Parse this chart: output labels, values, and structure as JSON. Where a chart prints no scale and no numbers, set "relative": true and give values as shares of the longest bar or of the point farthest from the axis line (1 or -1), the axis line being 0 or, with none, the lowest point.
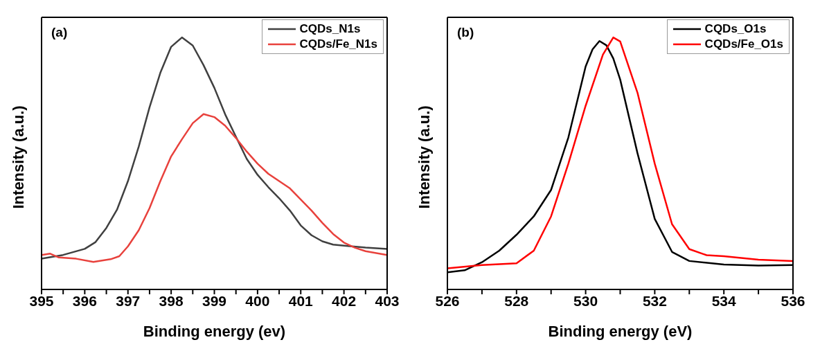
{
  "chart_data": [
    {
      "type": "line",
      "relative": true,
      "annotations": [
        "(a)"
      ],
      "xlabel": "Binding energy (ev)",
      "ylabel": "Intensity (a.u.)",
      "xlim": [
        395,
        403
      ],
      "xticks": [
        395,
        {
          "value": 395.5,
          "label": null
        },
        396,
        {
          "value": 396.5,
          "label": null
        },
        397,
        {
          "value": 397.5,
          "label": null
        },
        398,
        {
          "value": 398.5,
          "label": null
        },
        399,
        {
          "value": 399.5,
          "label": null
        },
        400,
        {
          "value": 400.5,
          "label": null
        },
        401,
        {
          "value": 401.5,
          "label": null
        },
        402,
        {
          "value": 402.5,
          "label": null
        },
        403
      ],
      "legend": "top right",
      "marker": "none",
      "line_style": "solid",
      "series": [
        {
          "name": "CQDs_N1s",
          "color": "#404040",
          "x": [
            395,
            395.5,
            396,
            396.25,
            396.5,
            396.75,
            397,
            397.25,
            397.5,
            397.75,
            398,
            398.25,
            398.5,
            398.75,
            399,
            399.25,
            399.5,
            399.75,
            400,
            400.25,
            400.5,
            400.75,
            401,
            401.25,
            401.5,
            401.75,
            402,
            402.5,
            403
          ],
          "values": [
            0.122,
            0.137,
            0.161,
            0.188,
            0.244,
            0.318,
            0.43,
            0.567,
            0.723,
            0.86,
            0.963,
            1,
            0.968,
            0.89,
            0.8,
            0.695,
            0.606,
            0.518,
            0.455,
            0.406,
            0.362,
            0.313,
            0.254,
            0.215,
            0.191,
            0.178,
            0.174,
            0.166,
            0.161
          ]
        },
        {
          "name": "CQDs/Fe_N1s",
          "color": "#e8413c",
          "x": [
            395,
            395.2,
            395.4,
            395.8,
            396.2,
            396.6,
            396.8,
            397,
            397.25,
            397.5,
            397.75,
            398,
            398.25,
            398.5,
            398.75,
            399,
            399.25,
            399.5,
            399.75,
            400,
            400.25,
            400.5,
            400.75,
            401,
            401.25,
            401.5,
            401.75,
            402,
            402.25,
            402.5,
            403
          ],
          "values": [
            0.137,
            0.142,
            0.127,
            0.122,
            0.109,
            0.12,
            0.132,
            0.171,
            0.235,
            0.323,
            0.43,
            0.528,
            0.596,
            0.66,
            0.696,
            0.684,
            0.65,
            0.601,
            0.547,
            0.499,
            0.459,
            0.43,
            0.401,
            0.357,
            0.313,
            0.264,
            0.22,
            0.186,
            0.166,
            0.152,
            0.137
          ]
        }
      ]
    },
    {
      "type": "line",
      "relative": true,
      "annotations": [
        "(b)"
      ],
      "xlabel": "Binding energy (eV)",
      "ylabel": "Intensity (a.u.)",
      "xlim": [
        526,
        536
      ],
      "xticks": [
        526,
        {
          "value": 527,
          "label": null
        },
        528,
        {
          "value": 529,
          "label": null
        },
        530,
        {
          "value": 531,
          "label": null
        },
        532,
        {
          "value": 533,
          "label": null
        },
        534,
        {
          "value": 535,
          "label": null
        },
        536
      ],
      "legend": "top right",
      "marker": "none",
      "line_style": "solid",
      "series": [
        {
          "name": "CQDs_O1s",
          "color": "#000000",
          "x": [
            526,
            526.5,
            527,
            527.5,
            528,
            528.5,
            529,
            529.5,
            530,
            530.2,
            530.4,
            530.6,
            530.8,
            531,
            531.5,
            532,
            532.5,
            533,
            534,
            535,
            536
          ],
          "values": [
            0.068,
            0.076,
            0.108,
            0.154,
            0.217,
            0.29,
            0.395,
            0.603,
            0.885,
            0.953,
            0.986,
            0.969,
            0.917,
            0.833,
            0.541,
            0.28,
            0.149,
            0.113,
            0.099,
            0.095,
            0.097
          ]
        },
        {
          "name": "CQDs/Fe_O1s",
          "color": "#ff0000",
          "x": [
            526,
            527,
            528,
            528.5,
            529,
            529.5,
            530,
            530.5,
            530.8,
            531,
            531.5,
            532,
            532.5,
            533,
            533.5,
            534,
            535,
            536
          ],
          "values": [
            0.084,
            0.097,
            0.104,
            0.154,
            0.29,
            0.499,
            0.729,
            0.932,
            1,
            0.984,
            0.781,
            0.499,
            0.259,
            0.16,
            0.136,
            0.132,
            0.118,
            0.113
          ]
        }
      ]
    }
  ]
}
